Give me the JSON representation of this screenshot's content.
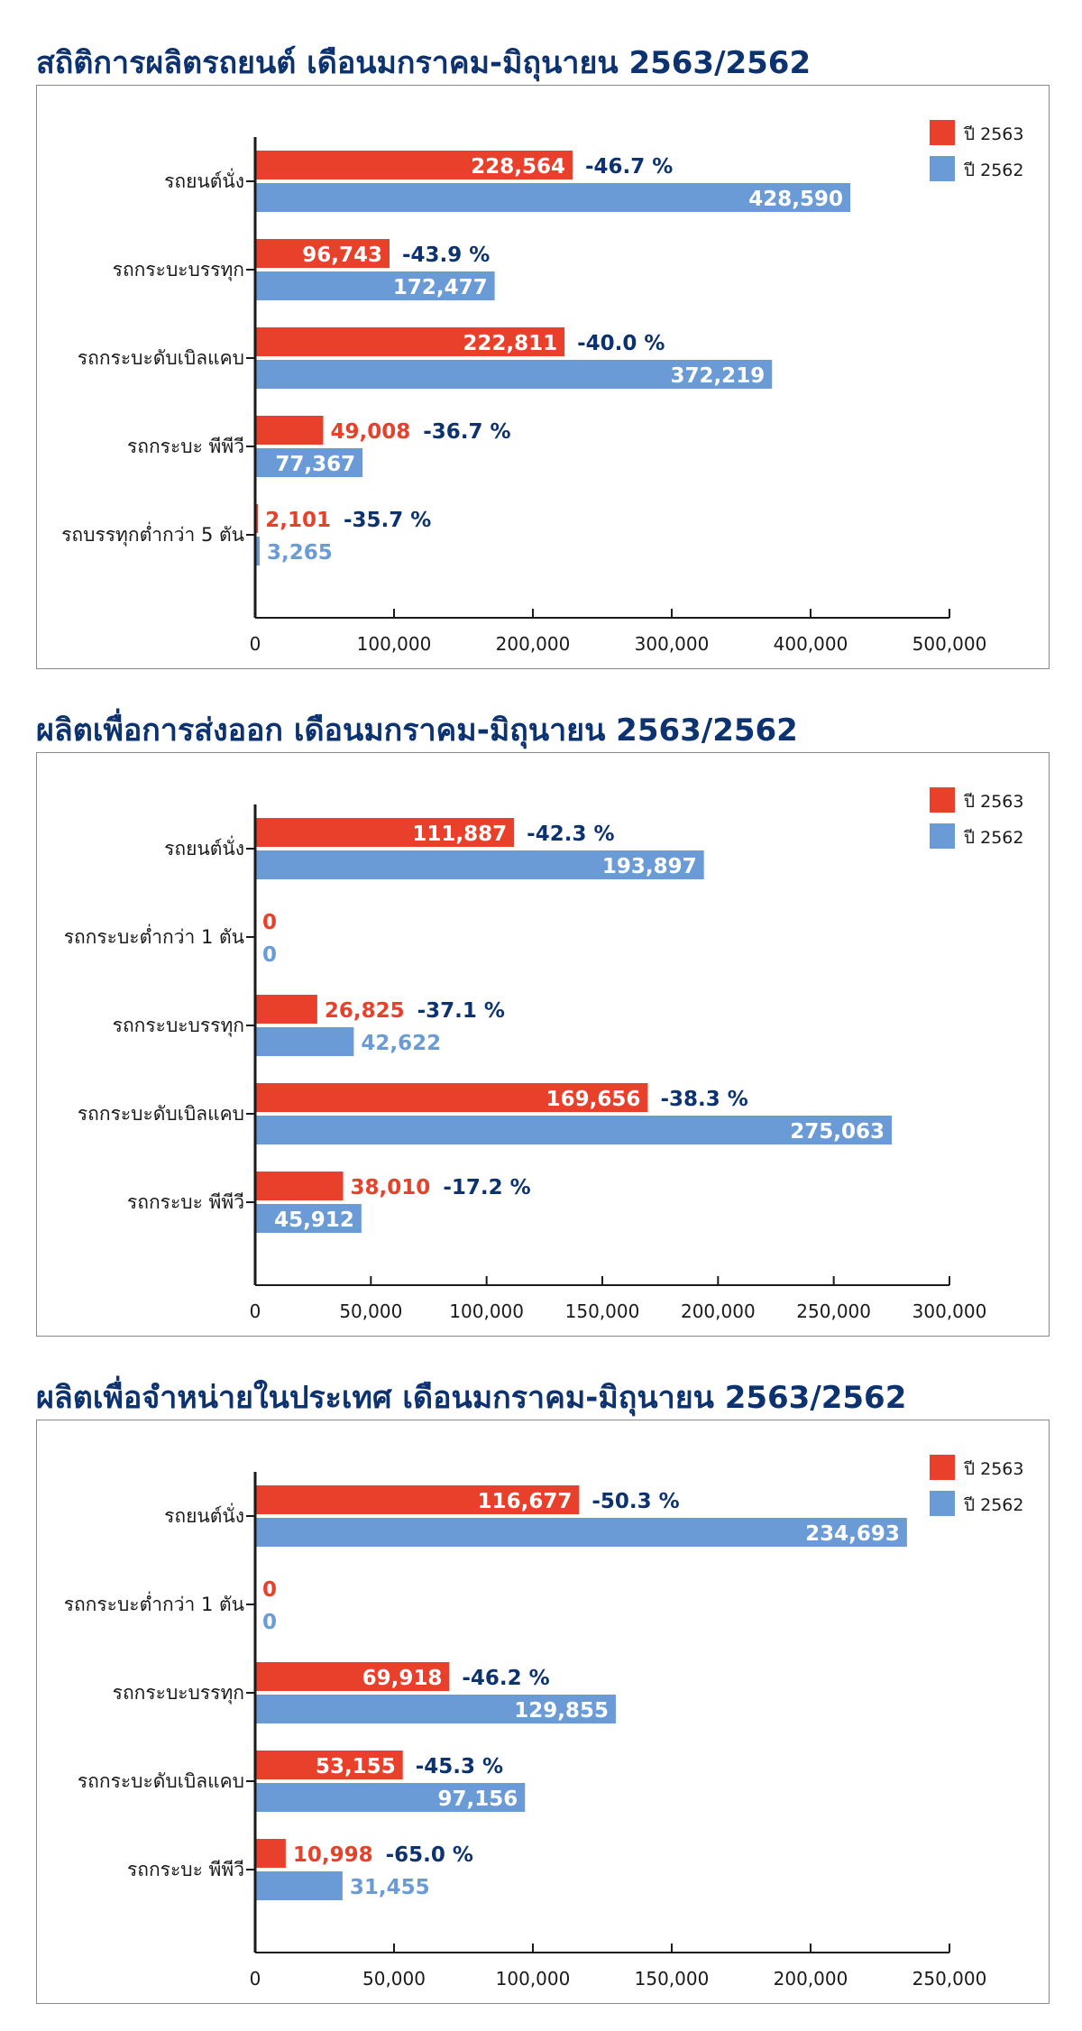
{
  "chart_data": [
    {
      "type": "bar",
      "title": "สถิติการผลิตรถยนต์ เดือนมกราคม-มิถุนายน 2563/2562",
      "categories": [
        "รถยนต์นั่ง",
        "รถกระบะบรรทุก",
        "รถกระบะดับเบิลแคบ",
        "รถกระบะ พีพีวี",
        "รถบรรทุกต่ำกว่า 5 ตัน"
      ],
      "series": [
        {
          "name": "ปี 2563",
          "values": [
            228564,
            96743,
            222811,
            49008,
            2101
          ],
          "labels": [
            "228,564",
            "96,743",
            "222,811",
            "49,008",
            "2,101"
          ]
        },
        {
          "name": "ปี 2562",
          "values": [
            428590,
            172477,
            372219,
            77367,
            3265
          ],
          "labels": [
            "428,590",
            "172,477",
            "372,219",
            "77,367",
            "3,265"
          ]
        }
      ],
      "change": [
        "-46.7 %",
        "-43.9 %",
        "-40.0 %",
        "-36.7 %",
        "-35.7 %"
      ],
      "xlim": [
        0,
        500000
      ],
      "xticks": [
        0,
        100000,
        200000,
        300000,
        400000,
        500000
      ],
      "xtick_labels": [
        "0",
        "100,000",
        "200,000",
        "300,000",
        "400,000",
        "500,000"
      ],
      "legend": "top-right",
      "grid": false
    },
    {
      "type": "bar",
      "title": "ผลิตเพื่อการส่งออก เดือนมกราคม-มิถุนายน 2563/2562",
      "categories": [
        "รถยนต์นั่ง",
        "รถกระบะต่ำกว่า 1 ตัน",
        "รถกระบะบรรทุก",
        "รถกระบะดับเบิลแคบ",
        "รถกระบะ พีพีวี"
      ],
      "series": [
        {
          "name": "ปี 2563",
          "values": [
            111887,
            0,
            26825,
            169656,
            38010
          ],
          "labels": [
            "111,887",
            "0",
            "26,825",
            "169,656",
            "38,010"
          ]
        },
        {
          "name": "ปี 2562",
          "values": [
            193897,
            0,
            42622,
            275063,
            45912
          ],
          "labels": [
            "193,897",
            "0",
            "42,622",
            "275,063",
            "45,912"
          ]
        }
      ],
      "change": [
        "-42.3 %",
        "",
        "-37.1 %",
        "-38.3 %",
        "-17.2 %"
      ],
      "xlim": [
        0,
        300000
      ],
      "xticks": [
        0,
        50000,
        100000,
        150000,
        200000,
        250000,
        300000
      ],
      "xtick_labels": [
        "0",
        "50,000",
        "100,000",
        "150,000",
        "200,000",
        "250,000",
        "300,000"
      ],
      "legend": "top-right",
      "grid": false
    },
    {
      "type": "bar",
      "title": "ผลิตเพื่อจำหน่ายในประเทศ เดือนมกราคม-มิถุนายน 2563/2562",
      "categories": [
        "รถยนต์นั่ง",
        "รถกระบะต่ำกว่า 1 ตัน",
        "รถกระบะบรรทุก",
        "รถกระบะดับเบิลแคบ",
        "รถกระบะ พีพีวี"
      ],
      "series": [
        {
          "name": "ปี 2563",
          "values": [
            116677,
            0,
            69918,
            53155,
            10998
          ],
          "labels": [
            "116,677",
            "0",
            "69,918",
            "53,155",
            "10,998"
          ]
        },
        {
          "name": "ปี 2562",
          "values": [
            234693,
            0,
            129855,
            97156,
            31455
          ],
          "labels": [
            "234,693",
            "0",
            "129,855",
            "97,156",
            "31,455"
          ]
        }
      ],
      "change": [
        "-50.3 %",
        "",
        "-46.2 %",
        "-45.3 %",
        "-65.0 %"
      ],
      "xlim": [
        0,
        250000
      ],
      "xticks": [
        0,
        50000,
        100000,
        150000,
        200000,
        250000
      ],
      "xtick_labels": [
        "0",
        "50,000",
        "100,000",
        "150,000",
        "200,000",
        "250,000"
      ],
      "legend": "top-right",
      "grid": false
    }
  ],
  "colors": {
    "red": "#e8402a",
    "blue": "#6a9bd6",
    "navy": "#0c3370",
    "axis": "#1a1a1a"
  }
}
